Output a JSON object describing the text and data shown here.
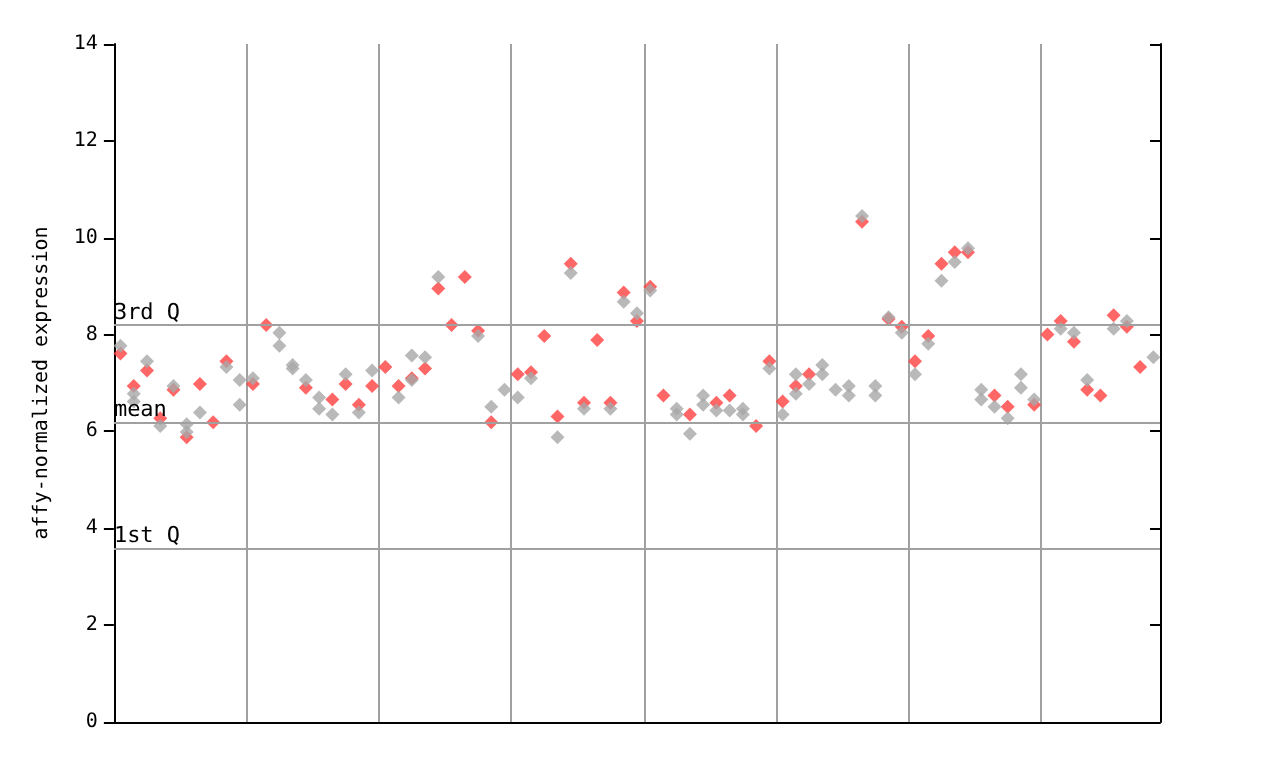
{
  "chart_data": {
    "type": "scatter",
    "ylabel": "affy-normalized expression",
    "categories": [
      null,
      null,
      null,
      null,
      null,
      null,
      null,
      null,
      null,
      null,
      null,
      null,
      null,
      null,
      null,
      null,
      null,
      null,
      null,
      null,
      null,
      null,
      null,
      null,
      null,
      null,
      null,
      null,
      null,
      null,
      null,
      null,
      null,
      null,
      null,
      null,
      null,
      null,
      null,
      null,
      null,
      null,
      null,
      null,
      null,
      null,
      null,
      null,
      null,
      null,
      null,
      null,
      null,
      null,
      null,
      null,
      null,
      null,
      null,
      null,
      null,
      null,
      null,
      null,
      null,
      null,
      null,
      null,
      null,
      null,
      null,
      null,
      null,
      null,
      null,
      null,
      null,
      null,
      null
    ],
    "ylim": [
      0,
      14
    ],
    "yticks": [
      0,
      2,
      4,
      6,
      8,
      10,
      12,
      14
    ],
    "grid": "x",
    "tick_labels": "y",
    "marker": "diamond",
    "ref_lines": [
      {
        "axis": "y",
        "value": 8.2,
        "label": "3rd Q",
        "color": "#a0a0a0"
      },
      {
        "axis": "y",
        "value": 6.2,
        "label": "mean",
        "color": "#a0a0a0"
      },
      {
        "axis": "y",
        "value": 3.6,
        "label": "1st Q",
        "color": "#a0a0a0"
      }
    ],
    "series": [
      {
        "color": "#ff4040",
        "values": [
          7.61,
          6.94,
          7.26,
          6.27,
          6.86,
          5.88,
          6.98,
          6.19,
          7.45,
          null,
          6.98,
          8.2,
          null,
          null,
          6.9,
          null,
          6.66,
          6.98,
          6.55,
          6.94,
          7.33,
          6.94,
          7.1,
          7.3,
          8.95,
          8.2,
          9.19,
          8.08,
          6.19,
          null,
          7.18,
          7.22,
          7.97,
          6.31,
          9.46,
          6.59,
          7.89,
          6.59,
          8.87,
          8.28,
          8.99,
          6.74,
          null,
          6.35,
          null,
          6.59,
          6.74,
          null,
          6.11,
          7.45,
          6.62,
          6.94,
          7.18,
          null,
          null,
          null,
          10.33,
          null,
          8.32,
          8.16,
          7.45,
          7.97,
          9.46,
          9.7,
          9.7,
          null,
          6.74,
          6.51,
          null,
          6.55,
          8.0,
          8.28,
          7.85,
          6.86,
          6.74,
          8.4,
          8.16,
          7.33,
          null
        ]
      },
      {
        "color": "#a8a8a8",
        "values": [
          7.77,
          6.78,
          7.45,
          6.11,
          6.94,
          6.15,
          6.39,
          null,
          7.33,
          7.06,
          7.1,
          null,
          8.04,
          7.37,
          7.06,
          6.7,
          6.35,
          7.18,
          6.39,
          7.26,
          null,
          6.7,
          7.57,
          7.53,
          9.19,
          null,
          null,
          7.97,
          6.51,
          6.86,
          6.7,
          7.1,
          null,
          5.88,
          9.27,
          6.47,
          null,
          6.47,
          8.68,
          8.44,
          8.91,
          null,
          6.47,
          5.95,
          6.74,
          6.43,
          6.43,
          6.47,
          null,
          7.3,
          6.35,
          7.18,
          6.98,
          7.37,
          6.86,
          6.94,
          10.45,
          6.94,
          8.36,
          8.04,
          7.18,
          7.81,
          9.11,
          9.5,
          9.78,
          6.86,
          6.51,
          6.27,
          7.18,
          6.66,
          null,
          8.12,
          8.04,
          7.06,
          null,
          8.12,
          8.28,
          null,
          7.53
        ]
      },
      {
        "color": "#a8a8a8",
        "values": [
          null,
          6.62,
          null,
          null,
          null,
          5.99,
          null,
          null,
          null,
          6.55,
          null,
          null,
          7.77,
          7.3,
          null,
          6.47,
          null,
          null,
          null,
          null,
          null,
          null,
          7.06,
          null,
          null,
          null,
          null,
          null,
          null,
          null,
          null,
          null,
          null,
          null,
          null,
          null,
          null,
          null,
          null,
          null,
          null,
          null,
          6.35,
          null,
          6.55,
          null,
          null,
          6.35,
          null,
          null,
          null,
          6.78,
          null,
          7.18,
          null,
          6.74,
          null,
          6.74,
          null,
          null,
          null,
          null,
          null,
          null,
          null,
          6.66,
          null,
          null,
          6.9,
          null,
          null,
          null,
          null,
          null,
          null,
          null,
          null,
          null,
          null
        ]
      }
    ]
  }
}
